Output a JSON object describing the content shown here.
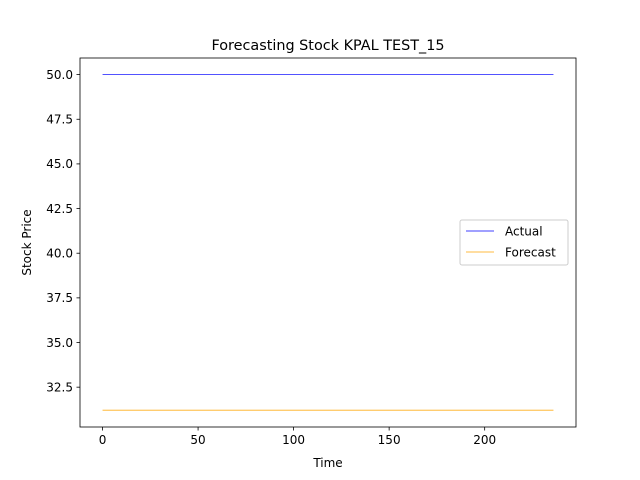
{
  "chart_data": {
    "type": "line",
    "title": "Forecasting Stock KPAL TEST_15",
    "xlabel": "Time",
    "ylabel": "Stock Price",
    "xlim": [
      -11.8,
      247.8
    ],
    "ylim": [
      30.27,
      50.93
    ],
    "xticks": [
      0,
      50,
      100,
      150,
      200
    ],
    "yticks": [
      32.5,
      35.0,
      37.5,
      40.0,
      42.5,
      45.0,
      47.5,
      50.0
    ],
    "grid": false,
    "legend_position": "center-right",
    "series": [
      {
        "name": "Actual",
        "color": "#0000ff",
        "x": [
          0,
          236
        ],
        "y": [
          50.0,
          50.0
        ]
      },
      {
        "name": "Forecast",
        "color": "#ffa500",
        "x": [
          0,
          236
        ],
        "y": [
          31.21,
          31.21
        ]
      }
    ]
  }
}
